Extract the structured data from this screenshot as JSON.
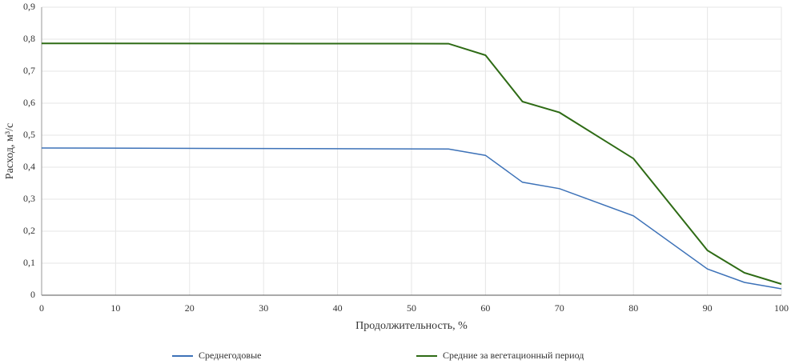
{
  "chart_data": {
    "type": "line",
    "x_label": "Продолжительность, %",
    "y_label": "Расход, м³/с",
    "x": [
      0,
      55,
      60,
      65,
      70,
      80,
      90,
      95,
      100
    ],
    "series": [
      {
        "name": "Среднегодовые",
        "color": "#3d72b8",
        "values": [
          0.46,
          0.457,
          0.437,
          0.353,
          0.333,
          0.248,
          0.082,
          0.04,
          0.02
        ]
      },
      {
        "name": "Средние  за вегетационный  период",
        "color": "#2e6b15",
        "values": [
          0.787,
          0.786,
          0.75,
          0.605,
          0.571,
          0.427,
          0.14,
          0.07,
          0.035
        ]
      }
    ],
    "xlim": [
      0,
      100
    ],
    "xticks": [
      0,
      10,
      20,
      30,
      40,
      50,
      60,
      70,
      80,
      90,
      100
    ],
    "ylim": [
      0,
      0.9
    ],
    "yticks": [
      0,
      {
        "value": 0.1,
        "label": "0,1"
      },
      {
        "value": 0.2,
        "label": "0,2"
      },
      {
        "value": 0.3,
        "label": "0,3"
      },
      {
        "value": 0.4,
        "label": "0,4"
      },
      {
        "value": 0.5,
        "label": "0,5"
      },
      {
        "value": 0.6,
        "label": "0,6"
      },
      {
        "value": 0.7,
        "label": "0,7"
      },
      {
        "value": 0.8,
        "label": "0,8"
      },
      {
        "value": 0.9,
        "label": "0,9"
      }
    ],
    "grid": true
  }
}
